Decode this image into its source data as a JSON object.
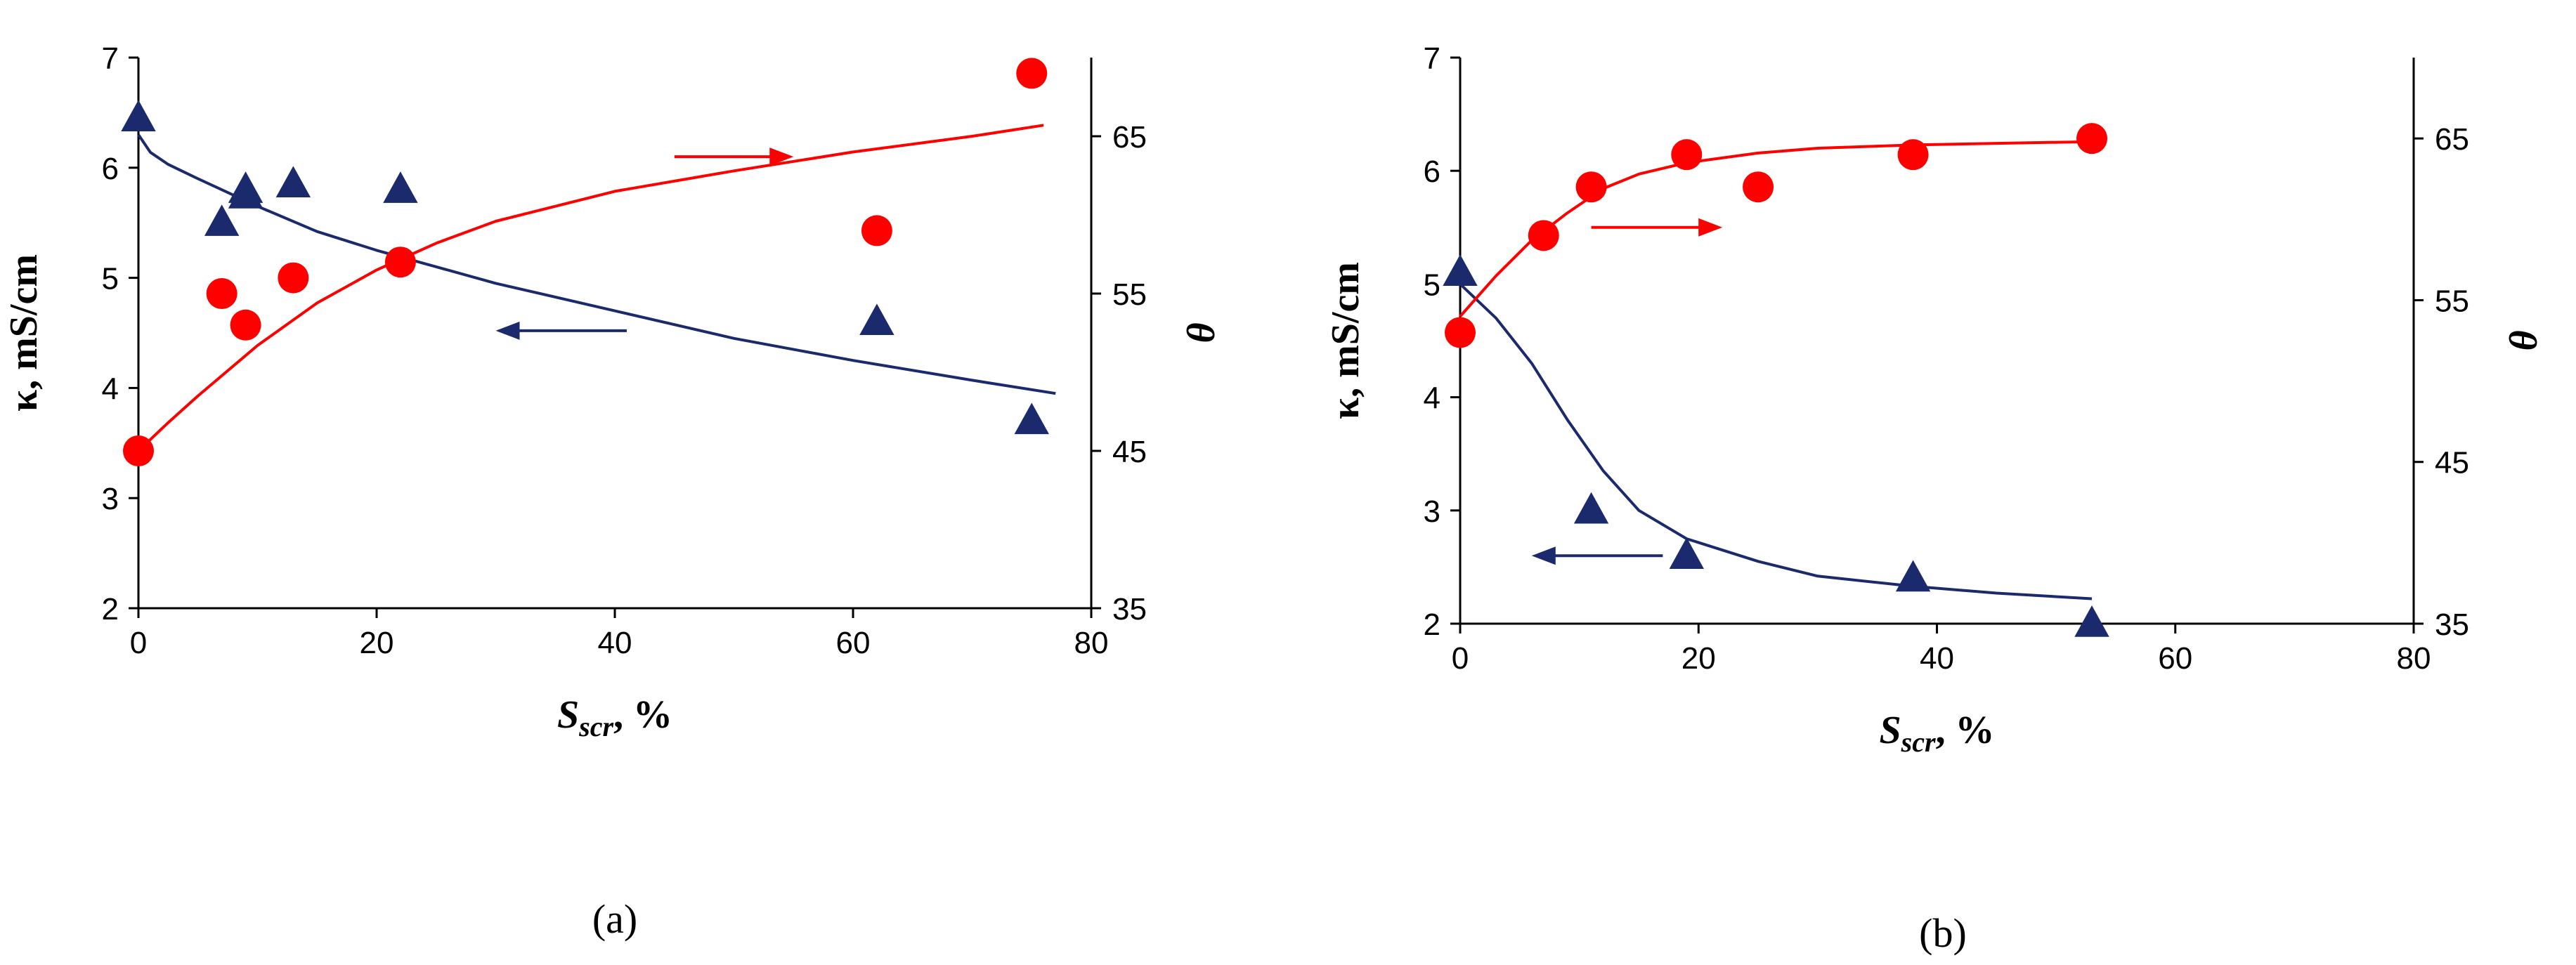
{
  "chart_data": [
    {
      "type": "scatter",
      "panel_label": "(a)",
      "xlabel": {
        "main": "S",
        "sub": "scr",
        "suffix": ", %"
      },
      "ylabel_left": "κ, mS/cm",
      "ylabel_right": "θ",
      "xlim": [
        0,
        80
      ],
      "xticks": [
        0,
        20,
        40,
        60,
        80
      ],
      "ylim_left": [
        2,
        7
      ],
      "yticks_left": [
        2,
        3,
        4,
        5,
        6,
        7
      ],
      "ylim_right": [
        35,
        70
      ],
      "yticks_right": [
        35,
        45,
        55,
        65
      ],
      "series": [
        {
          "name": "kappa",
          "axis": "left",
          "marker": "triangle",
          "color": "#1a2a6c",
          "points": [
            [
              0,
              6.45
            ],
            [
              7,
              5.5
            ],
            [
              9,
              5.8
            ],
            [
              9,
              5.75
            ],
            [
              13,
              5.85
            ],
            [
              22,
              5.8
            ],
            [
              62,
              4.6
            ],
            [
              75,
              3.7
            ]
          ],
          "fit": [
            [
              0,
              6.3
            ],
            [
              1,
              6.14
            ],
            [
              2.5,
              6.03
            ],
            [
              5,
              5.9
            ],
            [
              10,
              5.65
            ],
            [
              15,
              5.42
            ],
            [
              20,
              5.25
            ],
            [
              30,
              4.95
            ],
            [
              40,
              4.7
            ],
            [
              50,
              4.45
            ],
            [
              60,
              4.25
            ],
            [
              70,
              4.07
            ],
            [
              77,
              3.95
            ]
          ]
        },
        {
          "name": "theta",
          "axis": "right",
          "marker": "circle",
          "color": "#ff0000",
          "points": [
            [
              0,
              45
            ],
            [
              7,
              55
            ],
            [
              9,
              53
            ],
            [
              13,
              56
            ],
            [
              22,
              57
            ],
            [
              62,
              59
            ],
            [
              75,
              69
            ]
          ],
          "fit": [
            [
              0,
              45
            ],
            [
              2.5,
              46.8
            ],
            [
              5,
              48.5
            ],
            [
              10,
              51.7
            ],
            [
              15,
              54.4
            ],
            [
              20,
              56.5
            ],
            [
              25,
              58.2
            ],
            [
              30,
              59.6
            ],
            [
              40,
              61.5
            ],
            [
              50,
              62.8
            ],
            [
              60,
              64
            ],
            [
              70,
              65
            ],
            [
              76,
              65.7
            ]
          ]
        }
      ],
      "arrows": [
        {
          "series": "theta",
          "direction": "right",
          "from": [
            45,
            6.1
          ],
          "to": [
            55,
            6.1
          ]
        },
        {
          "series": "kappa",
          "direction": "left",
          "from": [
            41,
            4.52
          ],
          "to": [
            30,
            4.52
          ]
        }
      ]
    },
    {
      "type": "scatter",
      "panel_label": "(b)",
      "xlabel": {
        "main": "S",
        "sub": "scr",
        "suffix": ", %"
      },
      "ylabel_left": "κ, mS/cm",
      "ylabel_right": "θ",
      "xlim": [
        0,
        80
      ],
      "xticks": [
        0,
        20,
        40,
        60,
        80
      ],
      "ylim_left": [
        2,
        7
      ],
      "yticks_left": [
        2,
        3,
        4,
        5,
        6,
        7
      ],
      "ylim_right": [
        35,
        70
      ],
      "yticks_right": [
        35,
        45,
        55,
        65
      ],
      "series": [
        {
          "name": "kappa",
          "axis": "left",
          "marker": "triangle",
          "color": "#1a2a6c",
          "points": [
            [
              0,
              5.1
            ],
            [
              11,
              3.0
            ],
            [
              19,
              2.6
            ],
            [
              38,
              2.4
            ],
            [
              53,
              2.0
            ]
          ],
          "fit": [
            [
              0,
              5.0
            ],
            [
              3,
              4.7
            ],
            [
              6,
              4.3
            ],
            [
              9,
              3.8
            ],
            [
              12,
              3.35
            ],
            [
              15,
              3.0
            ],
            [
              19,
              2.75
            ],
            [
              25,
              2.55
            ],
            [
              30,
              2.42
            ],
            [
              38,
              2.33
            ],
            [
              45,
              2.27
            ],
            [
              53,
              2.22
            ]
          ]
        },
        {
          "name": "theta",
          "axis": "right",
          "marker": "circle",
          "color": "#ff0000",
          "points": [
            [
              0,
              53
            ],
            [
              7,
              59
            ],
            [
              11,
              62
            ],
            [
              19,
              64
            ],
            [
              25,
              62
            ],
            [
              38,
              64
            ],
            [
              53,
              65
            ]
          ],
          "fit": [
            [
              0,
              54
            ],
            [
              3,
              56.5
            ],
            [
              6,
              58.7
            ],
            [
              9,
              60.4
            ],
            [
              12,
              61.9
            ],
            [
              15,
              62.8
            ],
            [
              19,
              63.5
            ],
            [
              25,
              64.1
            ],
            [
              30,
              64.4
            ],
            [
              38,
              64.6
            ],
            [
              45,
              64.7
            ],
            [
              53,
              64.8
            ]
          ]
        }
      ],
      "arrows": [
        {
          "series": "theta",
          "direction": "right",
          "from": [
            11,
            5.5
          ],
          "to": [
            22,
            5.5
          ]
        },
        {
          "series": "kappa",
          "direction": "left",
          "from": [
            17,
            2.6
          ],
          "to": [
            6,
            2.6
          ]
        }
      ]
    }
  ]
}
